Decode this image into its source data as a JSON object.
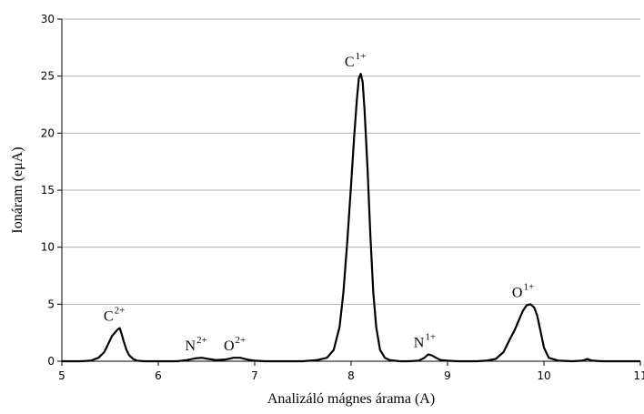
{
  "chart_data": {
    "type": "line",
    "title": "",
    "xlabel": "Analizáló mágnes árama (A)",
    "ylabel": "Ionáram (eμA)",
    "xlim": [
      5,
      11
    ],
    "ylim": [
      0,
      30
    ],
    "x_ticks": [
      "5",
      "6",
      "7",
      "8",
      "9",
      "10",
      "11"
    ],
    "y_ticks": [
      "0",
      "5",
      "10",
      "15",
      "20",
      "25",
      "30"
    ],
    "grid": "horizontal",
    "series": [
      {
        "color": "#000000",
        "x": [
          5.0,
          5.1,
          5.2,
          5.3,
          5.38,
          5.44,
          5.48,
          5.52,
          5.55,
          5.58,
          5.6,
          5.62,
          5.64,
          5.67,
          5.7,
          5.74,
          5.78,
          5.85,
          6.0,
          6.2,
          6.3,
          6.38,
          6.45,
          6.52,
          6.6,
          6.7,
          6.78,
          6.85,
          6.92,
          7.0,
          7.1,
          7.3,
          7.5,
          7.65,
          7.75,
          7.82,
          7.88,
          7.92,
          7.96,
          8.0,
          8.03,
          8.06,
          8.08,
          8.1,
          8.12,
          8.14,
          8.17,
          8.2,
          8.23,
          8.26,
          8.3,
          8.35,
          8.4,
          8.5,
          8.6,
          8.7,
          8.76,
          8.8,
          8.84,
          8.88,
          8.93,
          9.0,
          9.1,
          9.2,
          9.3,
          9.4,
          9.5,
          9.58,
          9.64,
          9.7,
          9.74,
          9.78,
          9.82,
          9.86,
          9.9,
          9.93,
          9.96,
          10.0,
          10.05,
          10.15,
          10.3,
          10.4,
          10.45,
          10.5,
          10.6,
          10.8,
          11.0
        ],
        "y": [
          0,
          0,
          0,
          0.05,
          0.3,
          0.8,
          1.5,
          2.2,
          2.5,
          2.8,
          2.9,
          2.4,
          1.8,
          1.0,
          0.5,
          0.2,
          0.05,
          0,
          0,
          0,
          0.1,
          0.25,
          0.3,
          0.2,
          0.1,
          0.15,
          0.3,
          0.3,
          0.15,
          0.05,
          0,
          0,
          0,
          0.1,
          0.3,
          1.0,
          3.0,
          6.0,
          10.5,
          15.5,
          19.5,
          23.0,
          24.8,
          25.2,
          24.5,
          22.0,
          17.0,
          11.0,
          6.0,
          3.0,
          1.0,
          0.3,
          0.1,
          0,
          0,
          0.05,
          0.3,
          0.6,
          0.5,
          0.3,
          0.1,
          0.05,
          0,
          0,
          0,
          0.05,
          0.2,
          0.8,
          1.8,
          2.8,
          3.6,
          4.4,
          4.9,
          5.0,
          4.7,
          4.0,
          2.8,
          1.2,
          0.3,
          0.05,
          0,
          0.05,
          0.2,
          0.05,
          0,
          0,
          0
        ]
      }
    ],
    "annotations": [
      {
        "base": "C",
        "sup": "2+",
        "x": 5.6,
        "y": 2.9
      },
      {
        "base": "N",
        "sup": "2+",
        "x": 6.45,
        "y": 0.3
      },
      {
        "base": "O",
        "sup": "2+",
        "x": 6.85,
        "y": 0.3
      },
      {
        "base": "C",
        "sup": "1+",
        "x": 8.1,
        "y": 25.2
      },
      {
        "base": "N",
        "sup": "1+",
        "x": 8.82,
        "y": 0.6
      },
      {
        "base": "O",
        "sup": "1+",
        "x": 9.84,
        "y": 5.0
      }
    ]
  }
}
